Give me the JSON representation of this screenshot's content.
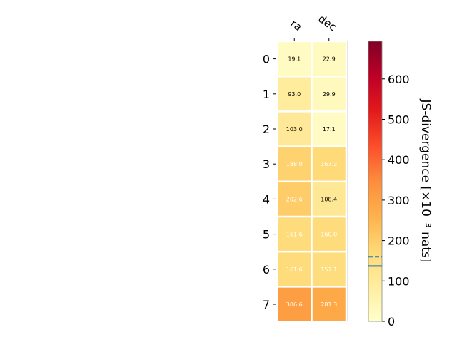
{
  "chart_data": {
    "type": "heatmap",
    "columns": [
      "ra",
      "dec"
    ],
    "rows": [
      "0",
      "1",
      "2",
      "3",
      "4",
      "5",
      "6",
      "7"
    ],
    "values": [
      [
        19.1,
        22.9
      ],
      [
        93.0,
        29.9
      ],
      [
        103.0,
        17.1
      ],
      [
        188.0,
        167.3
      ],
      [
        202.6,
        108.4
      ],
      [
        161.6,
        160.0
      ],
      [
        161.6,
        157.1
      ],
      [
        306.6,
        281.3
      ]
    ],
    "value_labels": [
      [
        "19.1",
        "22.9"
      ],
      [
        "93.0",
        "29.9"
      ],
      [
        "103.0",
        "17.1"
      ],
      [
        "188.0",
        "167.3"
      ],
      [
        "202.6",
        "108.4"
      ],
      [
        "161.6",
        "160.0"
      ],
      [
        "161.6",
        "157.1"
      ],
      [
        "306.6",
        "281.3"
      ]
    ],
    "colorbar": {
      "label": "JS-divergence [×10⁻³ nats]",
      "range": [
        0,
        693.1
      ],
      "ticks": [
        0,
        100,
        200,
        300,
        400,
        500,
        600
      ],
      "tick_labels": [
        "0",
        "100",
        "200",
        "300",
        "400",
        "500",
        "600"
      ],
      "colormap": "YlOrRd",
      "reference_lines": [
        {
          "value": 137,
          "style": "solid",
          "color": "#1f77b4"
        },
        {
          "value": 160,
          "style": "dashed",
          "color": "#1f77b4"
        }
      ]
    }
  }
}
